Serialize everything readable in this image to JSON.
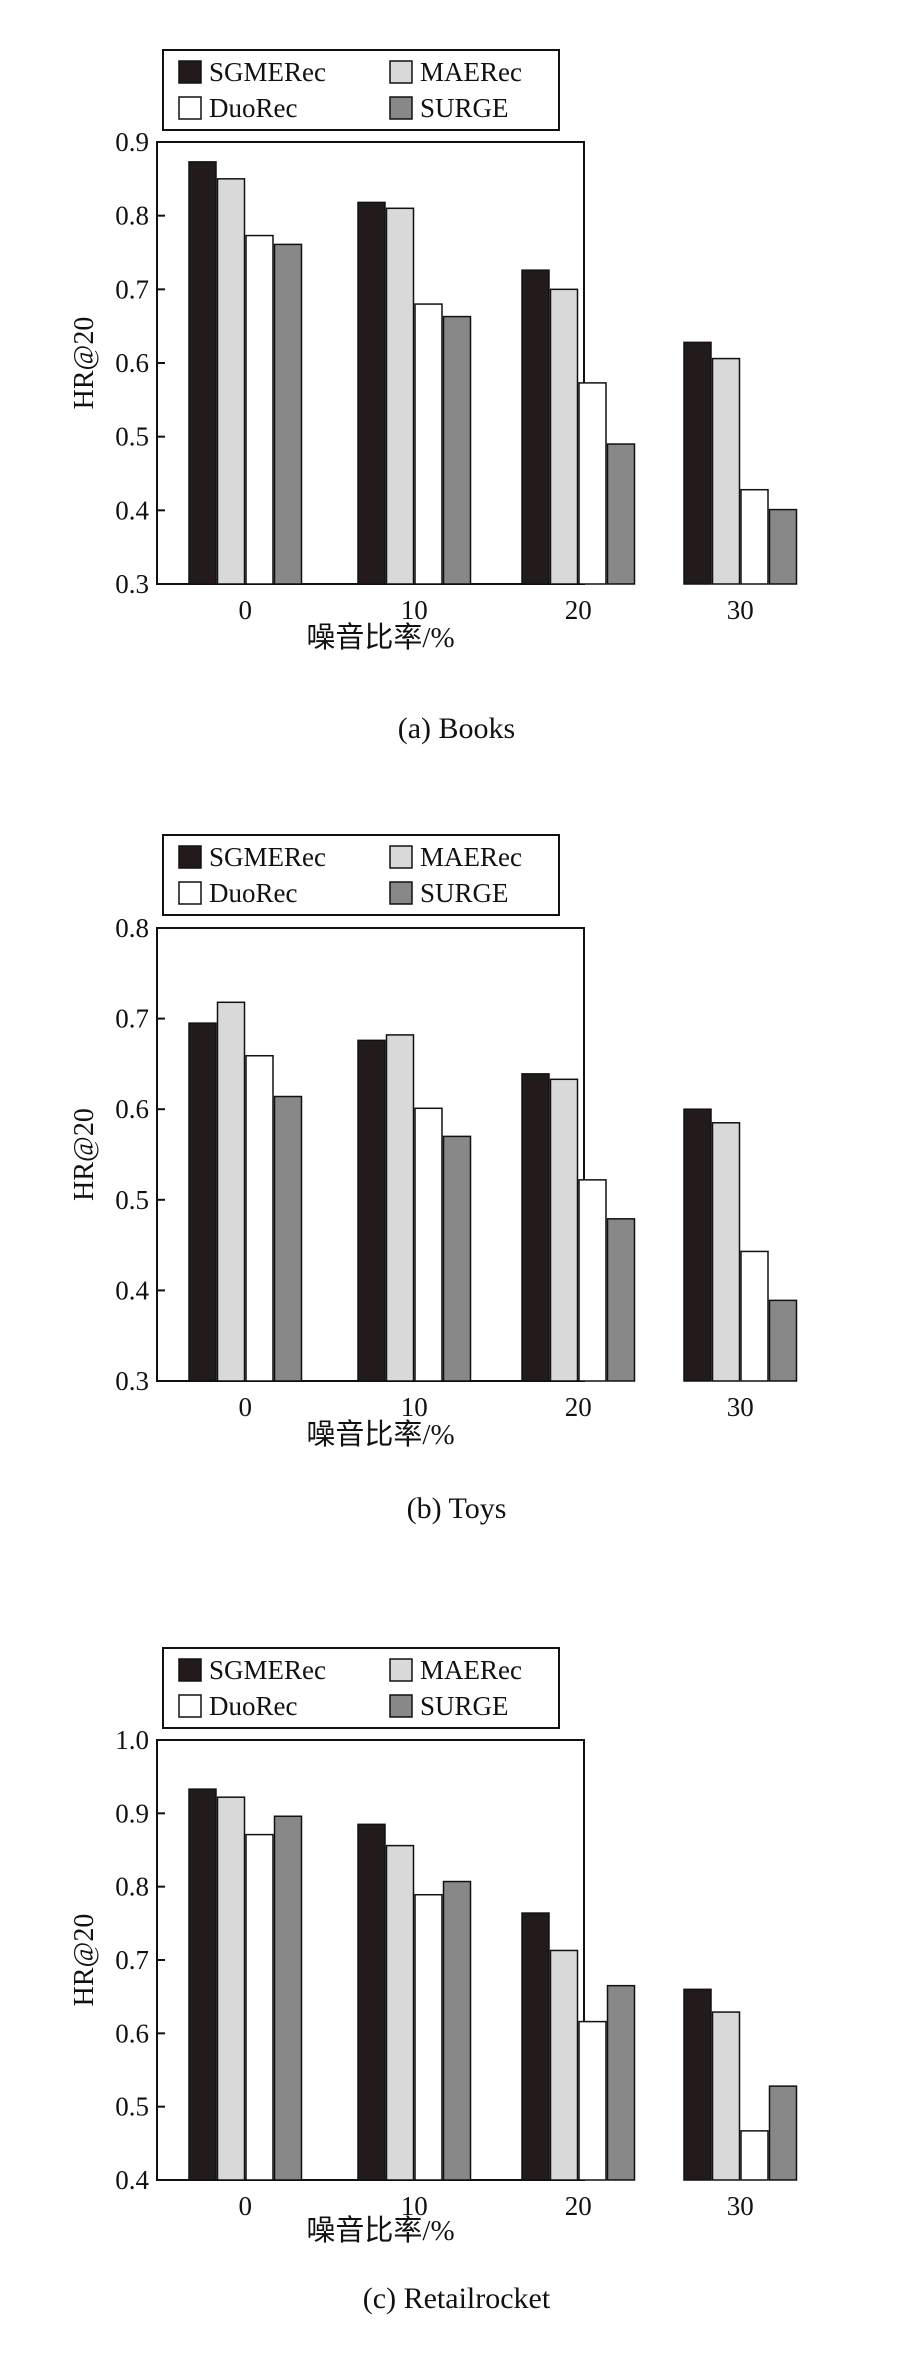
{
  "colors": {
    "SGMERec": "#231a1c",
    "MAERec": "#d9d9d9",
    "DuoRec": "#ffffff",
    "SURGE": "#888888",
    "stroke": "#111111"
  },
  "chart_data": [
    {
      "type": "bar",
      "caption": "(a) Books",
      "xlabel": "噪音比率/%",
      "ylabel": "HR@20",
      "categories": [
        "0",
        "10",
        "20",
        "30"
      ],
      "ylim": [
        0.3,
        0.9
      ],
      "yticks": [
        "0.3",
        "0.4",
        "0.5",
        "0.6",
        "0.7",
        "0.8",
        "0.9"
      ],
      "legend_position": "top-left",
      "grid": false,
      "series": [
        {
          "name": "SGMERec",
          "values": [
            0.873,
            0.818,
            0.726,
            0.628
          ]
        },
        {
          "name": "MAERec",
          "values": [
            0.85,
            0.81,
            0.7,
            0.606
          ]
        },
        {
          "name": "DuoRec",
          "values": [
            0.773,
            0.68,
            0.573,
            0.428
          ]
        },
        {
          "name": "SURGE",
          "values": [
            0.761,
            0.663,
            0.49,
            0.401
          ]
        }
      ]
    },
    {
      "type": "bar",
      "caption": "(b) Toys",
      "xlabel": "噪音比率/%",
      "ylabel": "HR@20",
      "categories": [
        "0",
        "10",
        "20",
        "30"
      ],
      "ylim": [
        0.3,
        0.8
      ],
      "yticks": [
        "0.3",
        "0.4",
        "0.5",
        "0.6",
        "0.7",
        "0.8"
      ],
      "legend_position": "top-left",
      "grid": false,
      "series": [
        {
          "name": "SGMERec",
          "values": [
            0.695,
            0.676,
            0.639,
            0.6
          ]
        },
        {
          "name": "MAERec",
          "values": [
            0.718,
            0.682,
            0.633,
            0.585
          ]
        },
        {
          "name": "DuoRec",
          "values": [
            0.659,
            0.601,
            0.522,
            0.443
          ]
        },
        {
          "name": "SURGE",
          "values": [
            0.614,
            0.57,
            0.479,
            0.389
          ]
        }
      ]
    },
    {
      "type": "bar",
      "caption": "(c) Retailrocket",
      "xlabel": "噪音比率/%",
      "ylabel": "HR@20",
      "categories": [
        "0",
        "10",
        "20",
        "30"
      ],
      "ylim": [
        0.4,
        1.0
      ],
      "yticks": [
        "0.4",
        "0.5",
        "0.6",
        "0.7",
        "0.8",
        "0.9",
        "1.0"
      ],
      "legend_position": "top-left",
      "grid": false,
      "series": [
        {
          "name": "SGMERec",
          "values": [
            0.933,
            0.885,
            0.764,
            0.66
          ]
        },
        {
          "name": "MAERec",
          "values": [
            0.922,
            0.856,
            0.713,
            0.629
          ]
        },
        {
          "name": "DuoRec",
          "values": [
            0.871,
            0.789,
            0.616,
            0.467
          ]
        },
        {
          "name": "SURGE",
          "values": [
            0.896,
            0.807,
            0.665,
            0.528
          ]
        }
      ]
    }
  ]
}
